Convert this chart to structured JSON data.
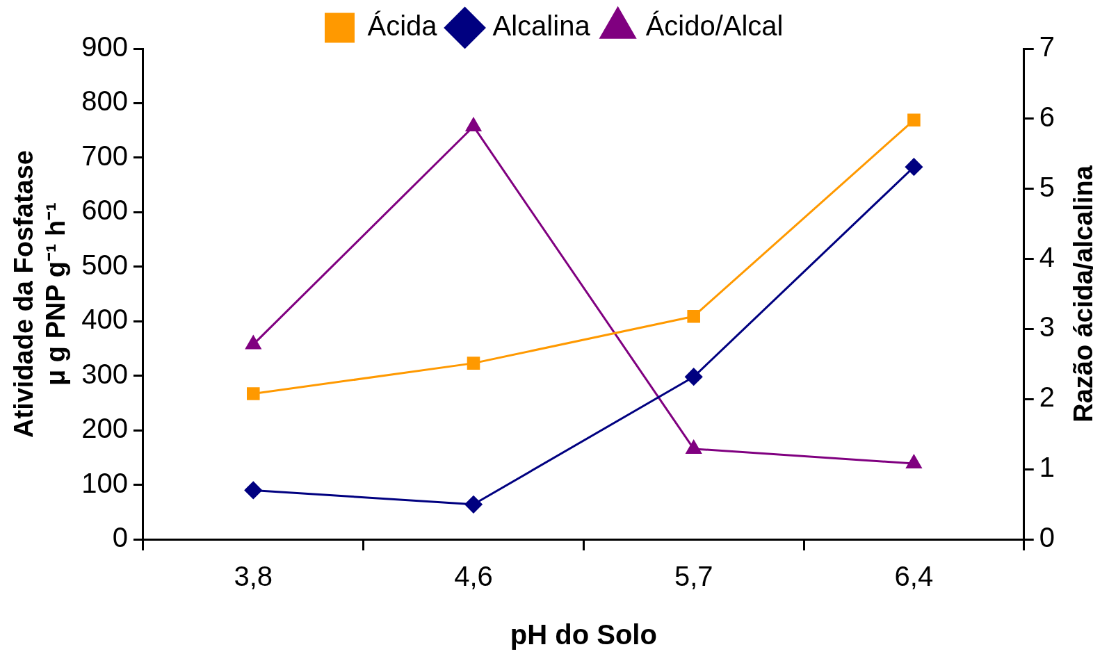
{
  "chart_data": {
    "type": "line",
    "xlabel": "pH do Solo",
    "ylabel": "Atividade da Fosfatase\nμ g PNP g⁻¹ h⁻¹",
    "y2label": "Razão ácida/alcalina",
    "categories": [
      "3,8",
      "4,6",
      "5,7",
      "6,4"
    ],
    "series": [
      {
        "name": "Ácida",
        "color": "#ff9900",
        "marker": "square",
        "values": [
          267,
          323,
          409,
          769
        ]
      },
      {
        "name": "Alcalina",
        "color": "#000080",
        "marker": "diamond",
        "values": [
          90,
          64,
          298,
          683
        ]
      },
      {
        "name": "Ácido/Alcal",
        "color": "#800080",
        "marker": "triangle",
        "axis": "y2",
        "values": [
          2.78,
          5.89,
          1.29,
          1.08
        ]
      }
    ],
    "ylim": [
      0,
      900
    ],
    "yticks": [
      0,
      100,
      200,
      300,
      400,
      500,
      600,
      700,
      800,
      900
    ],
    "y2lim": [
      0,
      7
    ],
    "y2ticks": [
      0,
      1,
      2,
      3,
      4,
      5,
      6,
      7
    ],
    "grid": false,
    "legend": "top",
    "line_style": "solid"
  }
}
